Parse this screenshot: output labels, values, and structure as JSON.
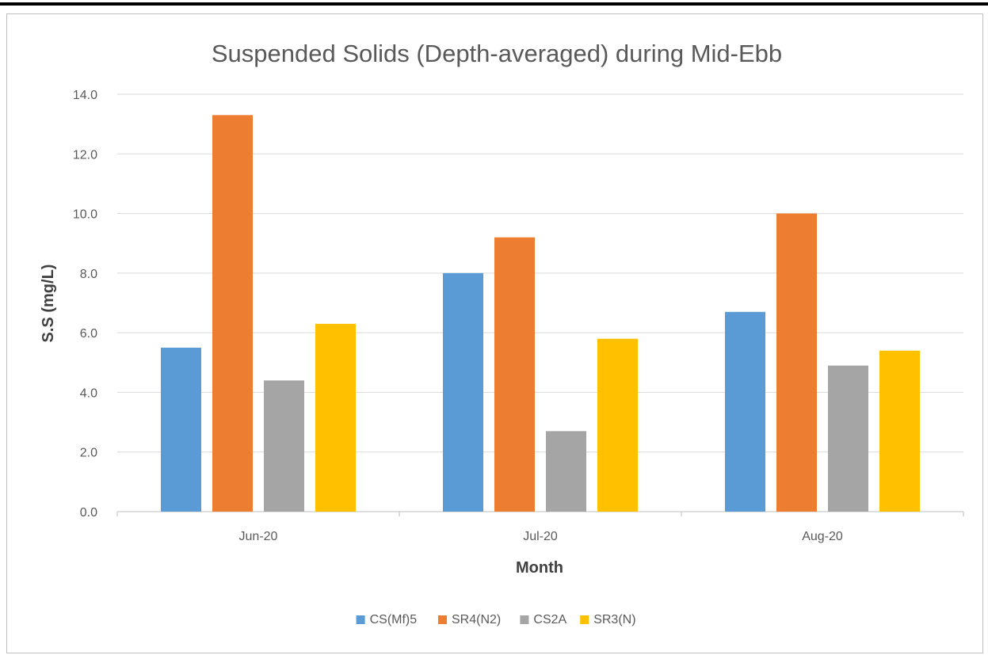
{
  "chart_data": {
    "type": "bar",
    "title": "Suspended Solids (Depth-averaged) during Mid-Ebb",
    "xlabel": "Month",
    "ylabel": "S.S (mg/L)",
    "ylim": [
      0,
      14
    ],
    "yticks": [
      "0.0",
      "2.0",
      "4.0",
      "6.0",
      "8.0",
      "10.0",
      "12.0",
      "14.0"
    ],
    "grid": true,
    "legend_position": "bottom",
    "categories": [
      "Jun-20",
      "Jul-20",
      "Aug-20"
    ],
    "series": [
      {
        "name": "CS(Mf)5",
        "color": "#5b9bd5",
        "values": [
          5.5,
          8.0,
          6.7
        ]
      },
      {
        "name": "SR4(N2)",
        "color": "#ed7d31",
        "values": [
          13.3,
          9.2,
          10.0
        ]
      },
      {
        "name": "CS2A",
        "color": "#a5a5a5",
        "values": [
          4.4,
          2.7,
          4.9
        ]
      },
      {
        "name": "SR3(N)",
        "color": "#ffc000",
        "values": [
          6.3,
          5.8,
          5.4
        ]
      }
    ]
  }
}
